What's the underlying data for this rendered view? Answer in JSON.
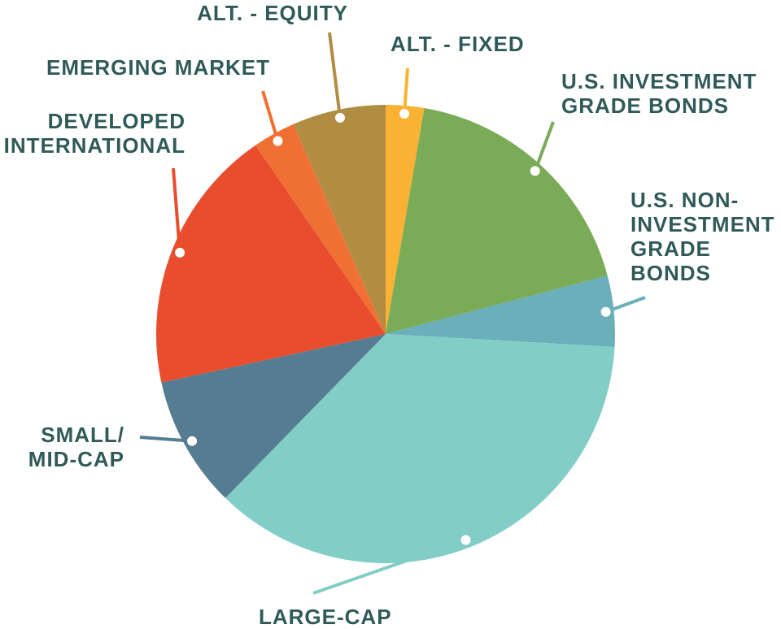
{
  "chart_data": {
    "type": "pie",
    "title": "",
    "start_angle_deg": 0,
    "direction": "clockwise",
    "slices": [
      {
        "label_lines": [
          "ALT. - FIXED"
        ],
        "value": 2.7,
        "color": "#F9B234"
      },
      {
        "label_lines": [
          "U.S. INVESTMENT",
          "GRADE BONDS"
        ],
        "value": 18.2,
        "color": "#7AAB57"
      },
      {
        "label_lines": [
          "U.S. NON-",
          "INVESTMENT",
          "GRADE",
          "BONDS"
        ],
        "value": 5.0,
        "color": "#6AAFBA"
      },
      {
        "label_lines": [
          "LARGE-CAP"
        ],
        "value": 36.4,
        "color": "#82CEC7"
      },
      {
        "label_lines": [
          "SMALL/",
          "MID-CAP"
        ],
        "value": 9.3,
        "color": "#567C92"
      },
      {
        "label_lines": [
          "DEVELOPED",
          "INTERNATIONAL"
        ],
        "value": 18.8,
        "color": "#E84E2D"
      },
      {
        "label_lines": [
          "EMERGING MARKET"
        ],
        "value": 3.0,
        "color": "#F07033"
      },
      {
        "label_lines": [
          "ALT. - EQUITY"
        ],
        "value": 6.6,
        "color": "#B18C43"
      }
    ]
  }
}
